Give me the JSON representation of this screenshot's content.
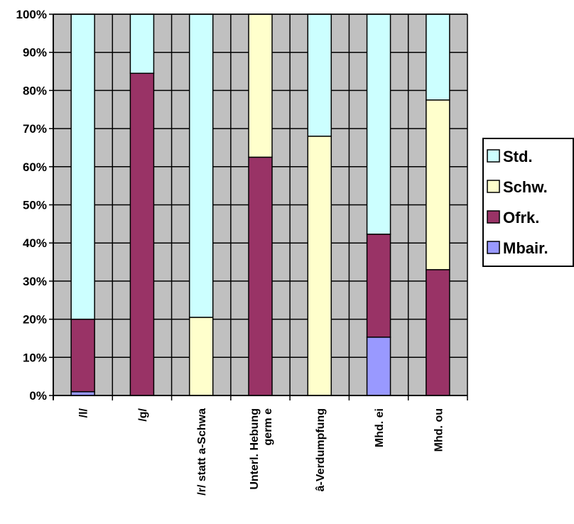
{
  "chart_data": {
    "type": "bar",
    "stacked": true,
    "percent": true,
    "categories": [
      [
        "/l/"
      ],
      [
        "/g/"
      ],
      [
        "/r/ statt a-Schwa"
      ],
      [
        "Unterl. Hebung",
        "germ e"
      ],
      [
        "â-Verdumpfung"
      ],
      [
        "Mhd. ei"
      ],
      [
        "Mhd. ou"
      ]
    ],
    "series": [
      {
        "name": "Mbair.",
        "color": "#9999ff",
        "values": [
          1,
          0,
          0,
          0,
          0,
          15.3,
          0
        ]
      },
      {
        "name": "Ofrk.",
        "color": "#993366",
        "values": [
          19,
          84.5,
          0,
          62.5,
          0,
          27,
          33
        ]
      },
      {
        "name": "Schw.",
        "color": "#ffffcc",
        "values": [
          0,
          0,
          20.5,
          37.5,
          68,
          0,
          44.5
        ]
      },
      {
        "name": "Std.",
        "color": "#ccffff",
        "values": [
          80,
          15.5,
          79.5,
          0,
          32,
          57.7,
          22.5
        ]
      }
    ],
    "legend_order": [
      "Std.",
      "Schw.",
      "Ofrk.",
      "Mbair."
    ],
    "ylim": [
      0,
      100
    ],
    "yticks": [
      "0%",
      "10%",
      "20%",
      "30%",
      "40%",
      "50%",
      "60%",
      "70%",
      "80%",
      "90%",
      "100%"
    ],
    "plot_background": "#c0c0c0",
    "grid": true,
    "legend_position": "right"
  }
}
